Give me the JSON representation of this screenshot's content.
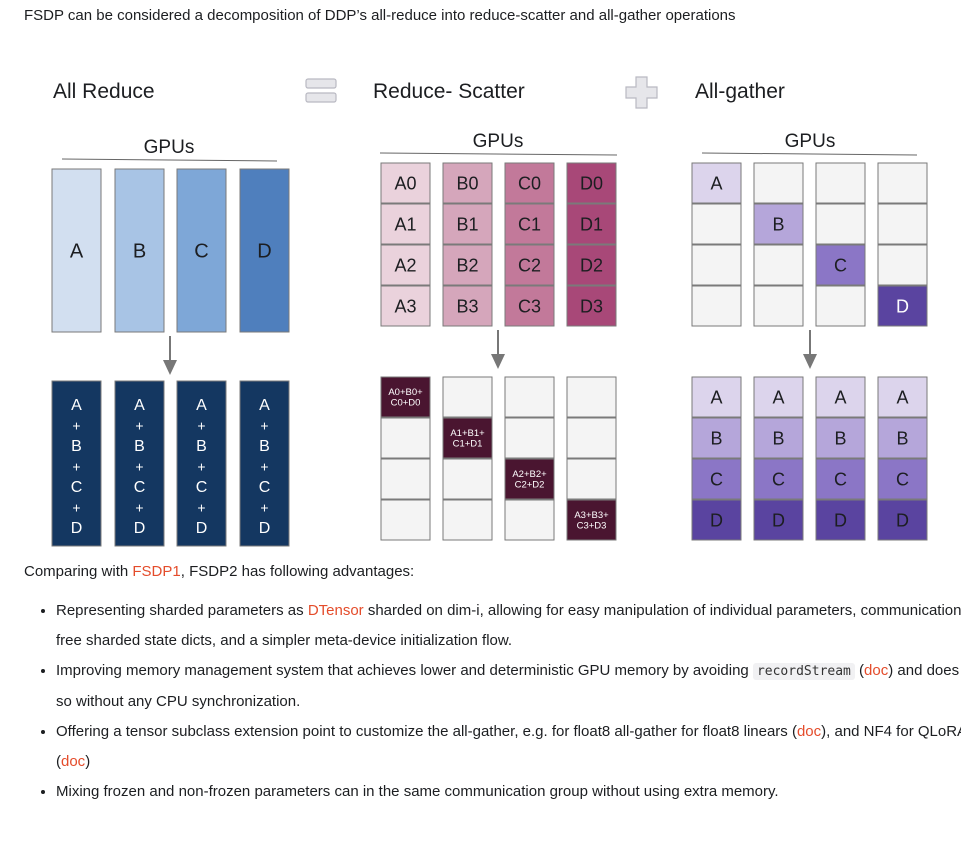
{
  "intro": "FSDP can be considered a decomposition of DDP’s all-reduce into reduce-scatter and all-gather operations",
  "diagram": {
    "titles": {
      "all_reduce": "All Reduce",
      "reduce_scatter": "Reduce- Scatter",
      "all_gather": "All-gather"
    },
    "gpus_label": "GPUs",
    "colors": {
      "light": [
        "#d2dff0",
        "#a8c4e5",
        "#7ea7d7",
        "#4f7fbd"
      ],
      "navy": "#143761",
      "pink": [
        "#ead2dc",
        "#d5a6bb",
        "#c2799a",
        "#a84878"
      ],
      "maroon": "#4a1530",
      "purple": [
        "#dcd4ec",
        "#b5a6da",
        "#8b76c6",
        "#5a44a0"
      ]
    },
    "all_reduce": {
      "inputs": [
        "A",
        "B",
        "C",
        "D"
      ],
      "output_parts": [
        "A",
        "+",
        "B",
        "+",
        "C",
        "+",
        "D"
      ]
    },
    "reduce_scatter": {
      "rows": [
        [
          "A0",
          "B0",
          "C0",
          "D0"
        ],
        [
          "A1",
          "B1",
          "C1",
          "D1"
        ],
        [
          "A2",
          "B2",
          "C2",
          "D2"
        ],
        [
          "A3",
          "B3",
          "C3",
          "D3"
        ]
      ],
      "outputs": [
        [
          "A0+B0+",
          "C0+D0"
        ],
        [
          "A1+B1+",
          "C1+D1"
        ],
        [
          "A2+B2+",
          "C2+D2"
        ],
        [
          "A3+B3+",
          "C3+D3"
        ]
      ]
    },
    "all_gather": {
      "inputs": [
        "A",
        "B",
        "C",
        "D"
      ],
      "outputs": [
        "A",
        "B",
        "C",
        "D"
      ]
    }
  },
  "compare": {
    "prefix": "Comparing with ",
    "link": "FSDP1",
    "suffix": ", FSDP2 has following advantages:"
  },
  "advantages": [
    {
      "a": "Representing sharded parameters as ",
      "link": "DTensor",
      "b": " sharded on dim-i, allowing for easy manipulation of individual parameters, communication-free sharded state dicts, and a simpler meta-device initialization flow."
    },
    {
      "a": "Improving memory management system that achieves lower and deterministic GPU memory by avoiding ",
      "code": "recordStream",
      "b": " (",
      "link": "doc",
      "c": ") and does so without any CPU synchronization."
    },
    {
      "a": "Offering a tensor subclass extension point to customize the all-gather, e.g. for float8 all-gather for float8 linears (",
      "link": "doc",
      "b": "), and NF4 for QLoRA (",
      "link2": "doc",
      "c": ")"
    },
    {
      "a": "Mixing frozen and non-frozen parameters can in the same communication group without using extra memory."
    }
  ]
}
